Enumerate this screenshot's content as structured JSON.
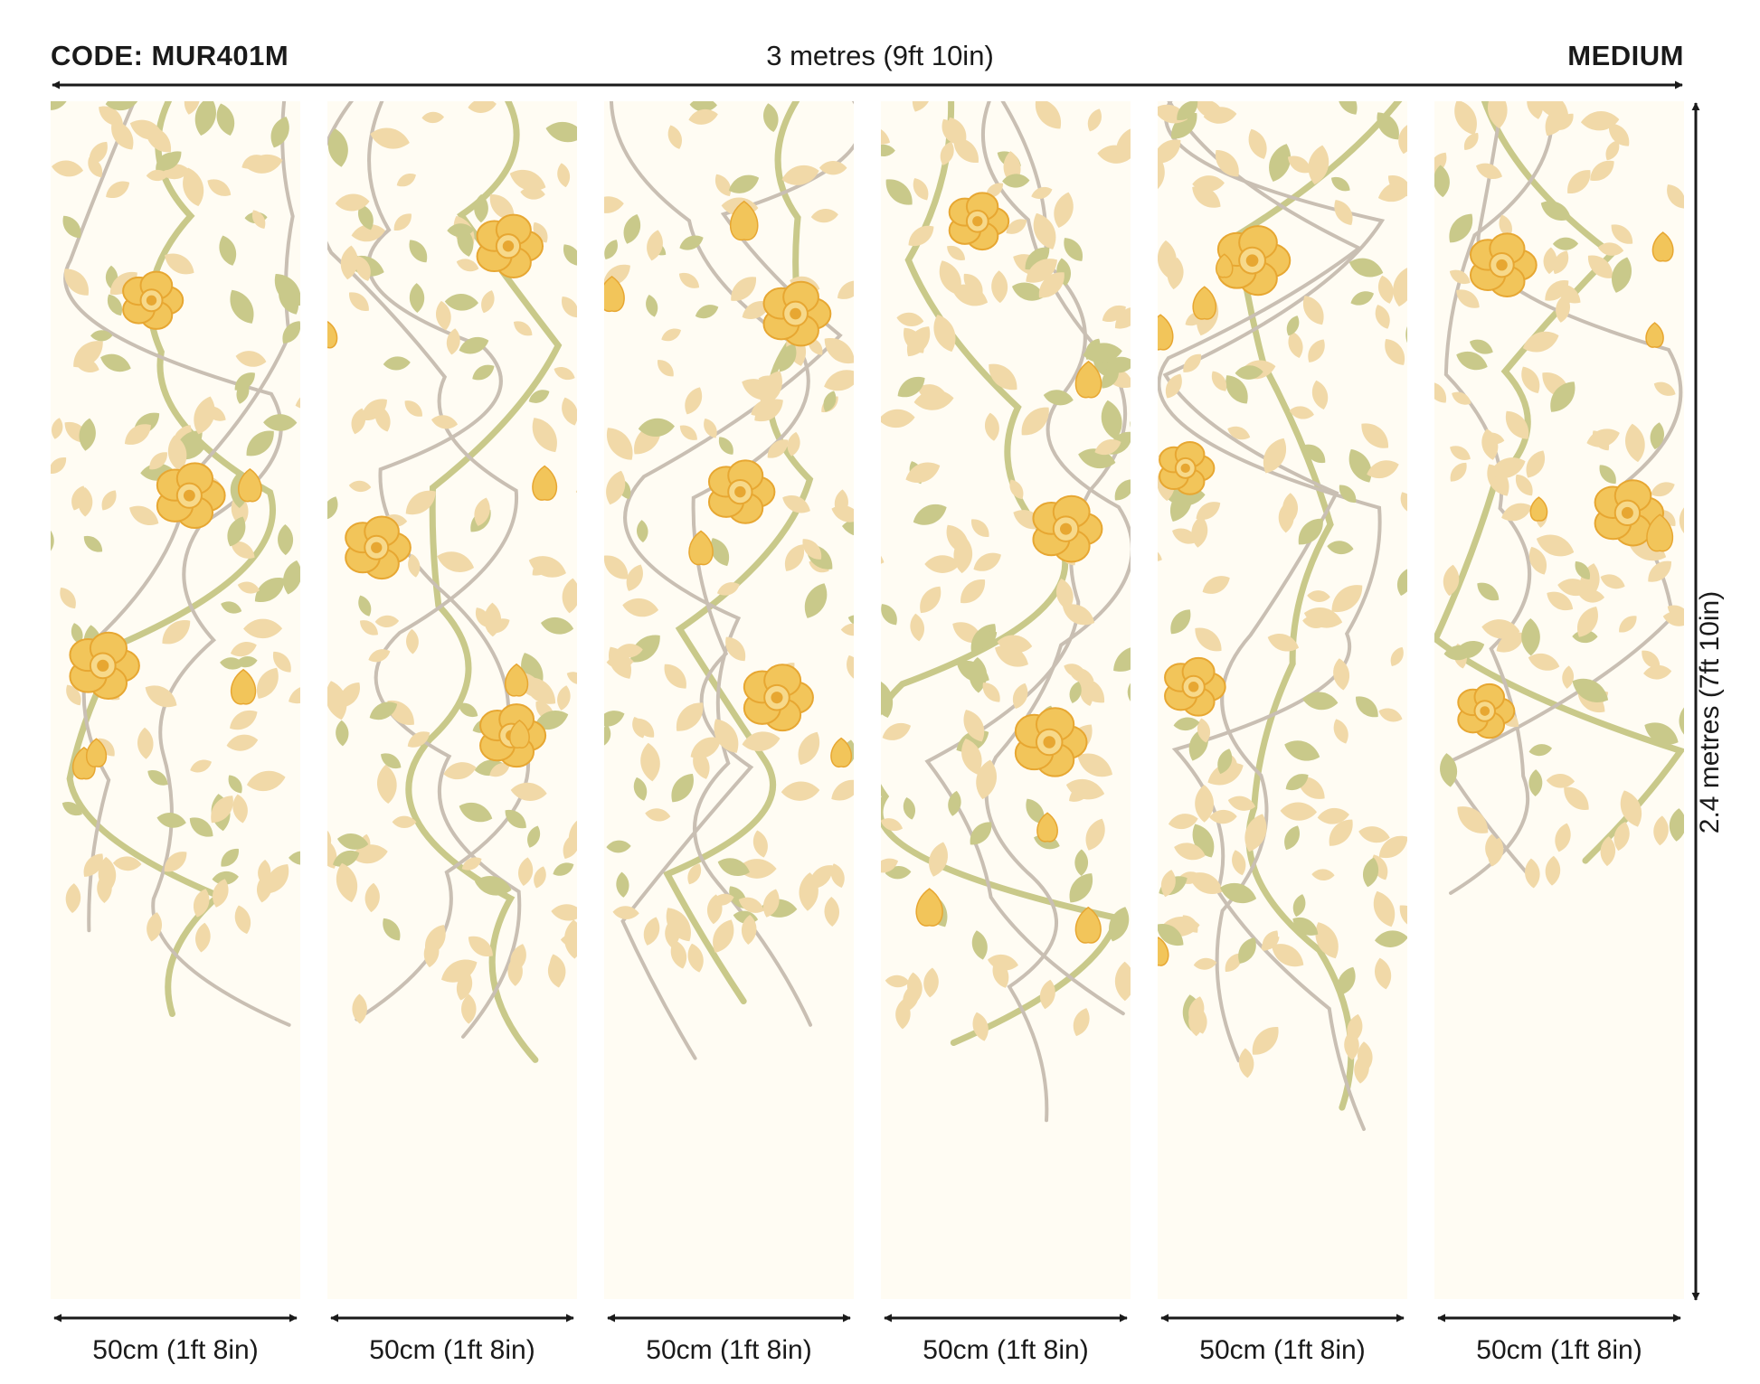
{
  "header": {
    "code": "CODE: MUR401M",
    "total_width": "3 metres (9ft 10in)",
    "size": "MEDIUM"
  },
  "total_height": "2.4 metres (7ft 10in)",
  "colors": {
    "background": "#fffcf3",
    "leaf_light": "#f1d9a8",
    "leaf_green": "#c9c98a",
    "stem_grey": "#c9bfb3",
    "flower": "#f2c55a",
    "flower_center": "#e7a732",
    "arrow": "#1a1a1a"
  },
  "panels": [
    {
      "width_label": "50cm (1ft 8in)",
      "pattern_fill": 0.68
    },
    {
      "width_label": "50cm (1ft 8in)",
      "pattern_fill": 0.74
    },
    {
      "width_label": "50cm (1ft 8in)",
      "pattern_fill": 0.7
    },
    {
      "width_label": "50cm (1ft 8in)",
      "pattern_fill": 0.76
    },
    {
      "width_label": "50cm (1ft 8in)",
      "pattern_fill": 0.79
    },
    {
      "width_label": "50cm (1ft 8in)",
      "pattern_fill": 0.63
    }
  ],
  "icons": {
    "arrow": "double-headed-arrow",
    "motif": "floral-vine-motif"
  }
}
